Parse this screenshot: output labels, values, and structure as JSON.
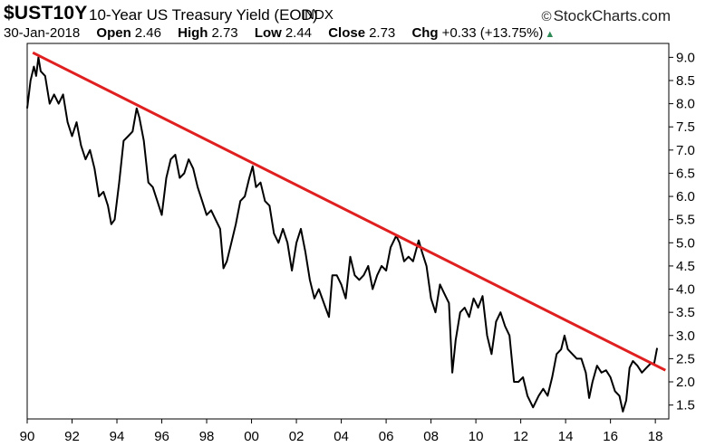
{
  "header": {
    "symbol": "$UST10Y",
    "description": "10-Year US Treasury Yield (EOD)",
    "exchange": "INDX",
    "brand": "StockCharts.com",
    "brand_icon": "copyright-icon",
    "date": "30-Jan-2018",
    "open_label": "Open",
    "open": "2.46",
    "high_label": "High",
    "high": "2.73",
    "low_label": "Low",
    "low": "2.44",
    "close_label": "Close",
    "close": "2.73",
    "chg_label": "Chg",
    "chg": "+0.33 (+13.75%)",
    "chg_arrow": "▲",
    "up_color": "#2e8b57"
  },
  "chart_data": {
    "type": "line",
    "x_unit": "year",
    "xlim": [
      1990,
      2018.6
    ],
    "ylim": [
      1.2,
      9.3
    ],
    "y_ticks": [
      "9.0",
      "8.5",
      "8.0",
      "7.5",
      "7.0",
      "6.5",
      "6.0",
      "5.5",
      "5.0",
      "4.5",
      "4.0",
      "3.5",
      "3.0",
      "2.5",
      "2.0",
      "1.5"
    ],
    "x_ticks": [
      "90",
      "92",
      "94",
      "96",
      "98",
      "00",
      "02",
      "04",
      "06",
      "08",
      "10",
      "12",
      "14",
      "16",
      "18"
    ],
    "grid": false,
    "series": [
      {
        "color": "#000000",
        "points": [
          [
            1990.0,
            7.9
          ],
          [
            1990.15,
            8.5
          ],
          [
            1990.3,
            8.8
          ],
          [
            1990.4,
            8.6
          ],
          [
            1990.5,
            9.0
          ],
          [
            1990.6,
            8.7
          ],
          [
            1990.8,
            8.6
          ],
          [
            1991.0,
            8.0
          ],
          [
            1991.2,
            8.2
          ],
          [
            1991.4,
            8.0
          ],
          [
            1991.6,
            8.2
          ],
          [
            1991.8,
            7.6
          ],
          [
            1992.0,
            7.3
          ],
          [
            1992.2,
            7.6
          ],
          [
            1992.4,
            7.1
          ],
          [
            1992.6,
            6.8
          ],
          [
            1992.8,
            7.0
          ],
          [
            1993.0,
            6.6
          ],
          [
            1993.2,
            6.0
          ],
          [
            1993.4,
            6.1
          ],
          [
            1993.6,
            5.8
          ],
          [
            1993.75,
            5.4
          ],
          [
            1993.9,
            5.5
          ],
          [
            1994.1,
            6.3
          ],
          [
            1994.3,
            7.2
          ],
          [
            1994.5,
            7.3
          ],
          [
            1994.7,
            7.4
          ],
          [
            1994.88,
            7.9
          ],
          [
            1995.0,
            7.7
          ],
          [
            1995.2,
            7.2
          ],
          [
            1995.4,
            6.3
          ],
          [
            1995.6,
            6.2
          ],
          [
            1995.8,
            5.9
          ],
          [
            1996.0,
            5.6
          ],
          [
            1996.2,
            6.4
          ],
          [
            1996.4,
            6.8
          ],
          [
            1996.6,
            6.9
          ],
          [
            1996.8,
            6.4
          ],
          [
            1997.0,
            6.5
          ],
          [
            1997.2,
            6.8
          ],
          [
            1997.4,
            6.6
          ],
          [
            1997.6,
            6.2
          ],
          [
            1997.8,
            5.9
          ],
          [
            1998.0,
            5.6
          ],
          [
            1998.2,
            5.7
          ],
          [
            1998.4,
            5.5
          ],
          [
            1998.6,
            5.3
          ],
          [
            1998.75,
            4.45
          ],
          [
            1998.9,
            4.6
          ],
          [
            1999.1,
            5.0
          ],
          [
            1999.3,
            5.4
          ],
          [
            1999.5,
            5.9
          ],
          [
            1999.7,
            6.0
          ],
          [
            1999.9,
            6.4
          ],
          [
            2000.05,
            6.65
          ],
          [
            2000.2,
            6.2
          ],
          [
            2000.4,
            6.3
          ],
          [
            2000.6,
            5.9
          ],
          [
            2000.8,
            5.8
          ],
          [
            2001.0,
            5.2
          ],
          [
            2001.2,
            5.0
          ],
          [
            2001.4,
            5.3
          ],
          [
            2001.6,
            5.0
          ],
          [
            2001.8,
            4.4
          ],
          [
            2002.0,
            5.0
          ],
          [
            2002.2,
            5.3
          ],
          [
            2002.4,
            4.8
          ],
          [
            2002.6,
            4.2
          ],
          [
            2002.8,
            3.8
          ],
          [
            2003.0,
            4.0
          ],
          [
            2003.3,
            3.6
          ],
          [
            2003.45,
            3.4
          ],
          [
            2003.6,
            4.3
          ],
          [
            2003.8,
            4.3
          ],
          [
            2004.0,
            4.1
          ],
          [
            2004.2,
            3.8
          ],
          [
            2004.4,
            4.7
          ],
          [
            2004.6,
            4.3
          ],
          [
            2004.8,
            4.2
          ],
          [
            2005.0,
            4.3
          ],
          [
            2005.2,
            4.5
          ],
          [
            2005.4,
            4.0
          ],
          [
            2005.6,
            4.3
          ],
          [
            2005.8,
            4.5
          ],
          [
            2006.0,
            4.4
          ],
          [
            2006.2,
            4.9
          ],
          [
            2006.45,
            5.15
          ],
          [
            2006.6,
            5.0
          ],
          [
            2006.8,
            4.6
          ],
          [
            2007.0,
            4.7
          ],
          [
            2007.2,
            4.6
          ],
          [
            2007.45,
            5.05
          ],
          [
            2007.6,
            4.8
          ],
          [
            2007.8,
            4.5
          ],
          [
            2008.0,
            3.8
          ],
          [
            2008.2,
            3.5
          ],
          [
            2008.4,
            4.1
          ],
          [
            2008.6,
            3.9
          ],
          [
            2008.8,
            3.7
          ],
          [
            2008.95,
            2.2
          ],
          [
            2009.1,
            2.9
          ],
          [
            2009.3,
            3.5
          ],
          [
            2009.5,
            3.6
          ],
          [
            2009.7,
            3.4
          ],
          [
            2009.9,
            3.8
          ],
          [
            2010.1,
            3.6
          ],
          [
            2010.3,
            3.85
          ],
          [
            2010.5,
            3.0
          ],
          [
            2010.7,
            2.6
          ],
          [
            2010.9,
            3.3
          ],
          [
            2011.1,
            3.5
          ],
          [
            2011.3,
            3.2
          ],
          [
            2011.5,
            3.0
          ],
          [
            2011.7,
            2.0
          ],
          [
            2011.9,
            2.0
          ],
          [
            2012.1,
            2.1
          ],
          [
            2012.3,
            1.7
          ],
          [
            2012.55,
            1.45
          ],
          [
            2012.8,
            1.7
          ],
          [
            2013.0,
            1.85
          ],
          [
            2013.2,
            1.7
          ],
          [
            2013.4,
            2.1
          ],
          [
            2013.6,
            2.6
          ],
          [
            2013.8,
            2.7
          ],
          [
            2013.95,
            3.0
          ],
          [
            2014.1,
            2.7
          ],
          [
            2014.3,
            2.6
          ],
          [
            2014.5,
            2.5
          ],
          [
            2014.7,
            2.5
          ],
          [
            2014.9,
            2.2
          ],
          [
            2015.05,
            1.65
          ],
          [
            2015.2,
            2.0
          ],
          [
            2015.4,
            2.35
          ],
          [
            2015.6,
            2.2
          ],
          [
            2015.8,
            2.25
          ],
          [
            2016.0,
            2.1
          ],
          [
            2016.2,
            1.8
          ],
          [
            2016.4,
            1.7
          ],
          [
            2016.55,
            1.36
          ],
          [
            2016.7,
            1.6
          ],
          [
            2016.85,
            2.3
          ],
          [
            2017.0,
            2.45
          ],
          [
            2017.2,
            2.35
          ],
          [
            2017.4,
            2.2
          ],
          [
            2017.6,
            2.3
          ],
          [
            2017.8,
            2.4
          ],
          [
            2017.95,
            2.4
          ],
          [
            2018.08,
            2.73
          ]
        ]
      },
      {
        "color": "#e02020",
        "points": [
          [
            1990.25,
            9.1
          ],
          [
            2018.45,
            2.25
          ]
        ]
      }
    ]
  }
}
